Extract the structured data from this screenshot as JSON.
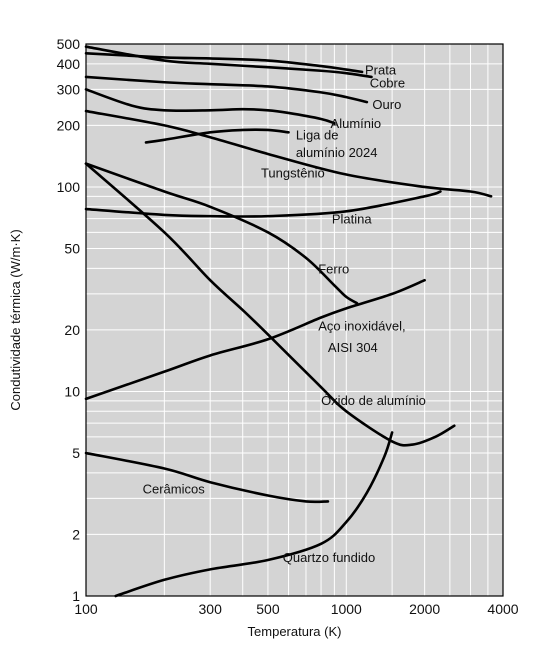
{
  "chart_data": {
    "type": "line",
    "xscale": "log",
    "yscale": "log",
    "xlim": [
      100,
      4000
    ],
    "ylim": [
      1,
      500
    ],
    "xlabel": "Temperatura (K)",
    "ylabel": "Condutividade térmica (W/m·K)",
    "grid": true,
    "xticks": [
      100,
      300,
      500,
      1000,
      2000,
      4000
    ],
    "xtick_labels": [
      "100",
      "300",
      "500",
      "1000",
      "2000",
      "4000"
    ],
    "yticks": [
      1,
      2,
      5,
      10,
      20,
      50,
      100,
      200,
      300,
      400,
      500
    ],
    "ytick_labels": [
      "1",
      "2",
      "5",
      "10",
      "20",
      "50",
      "100",
      "200",
      "300",
      "400",
      "500"
    ],
    "colors": {
      "background": "#d4d4d4",
      "grid": "#ffffff",
      "line": "#000000"
    },
    "series": [
      {
        "name": "Prata",
        "x": [
          100,
          200,
          300,
          500,
          800,
          1000,
          1150
        ],
        "y": [
          450,
          430,
          425,
          415,
          390,
          375,
          365
        ]
      },
      {
        "name": "Cobre",
        "x": [
          100,
          200,
          300,
          500,
          800,
          1000,
          1250
        ],
        "y": [
          485,
          415,
          400,
          385,
          370,
          360,
          345
        ]
      },
      {
        "name": "Ouro",
        "x": [
          100,
          200,
          300,
          500,
          800,
          1000,
          1200
        ],
        "y": [
          345,
          325,
          318,
          310,
          290,
          275,
          260
        ]
      },
      {
        "name": "Alumínio",
        "x": [
          100,
          150,
          200,
          300,
          400,
          500,
          600,
          800,
          900
        ],
        "y": [
          300,
          250,
          237,
          237,
          240,
          237,
          230,
          215,
          205
        ]
      },
      {
        "name": "Liga de alumínio 2024",
        "x": [
          170,
          200,
          300,
          400,
          500,
          600
        ],
        "y": [
          165,
          170,
          185,
          190,
          190,
          185
        ]
      },
      {
        "name": "Tungstênio",
        "x": [
          100,
          200,
          300,
          500,
          1000,
          2000,
          3000,
          3600
        ],
        "y": [
          235,
          200,
          175,
          145,
          115,
          100,
          95,
          90
        ]
      },
      {
        "name": "Platina",
        "x": [
          100,
          200,
          300,
          500,
          1000,
          2000,
          2300
        ],
        "y": [
          78,
          73,
          72,
          72,
          76,
          90,
          95
        ]
      },
      {
        "name": "Ferro",
        "x": [
          100,
          200,
          300,
          500,
          700,
          900,
          1000,
          1100
        ],
        "y": [
          130,
          95,
          80,
          60,
          45,
          33,
          29,
          27
        ]
      },
      {
        "name": "Aço inoxidável, AISI 304",
        "x": [
          100,
          200,
          300,
          500,
          800,
          1000,
          1500,
          2000
        ],
        "y": [
          9.2,
          12.5,
          15,
          18,
          23,
          25.5,
          30,
          35
        ]
      },
      {
        "name": "Óxido de alumínio",
        "x": [
          100,
          200,
          300,
          400,
          500,
          800,
          1000,
          1500,
          1800,
          2200,
          2600
        ],
        "y": [
          130,
          60,
          35,
          25,
          19,
          10.5,
          8,
          5.7,
          5.5,
          6,
          6.8
        ]
      },
      {
        "name": "Cerâmicos",
        "x": [
          100,
          200,
          300,
          500,
          700,
          850
        ],
        "y": [
          5,
          4.2,
          3.6,
          3.1,
          2.9,
          2.9
        ]
      },
      {
        "name": "Quartzo fundido",
        "x": [
          130,
          200,
          300,
          500,
          800,
          1000,
          1200,
          1400,
          1500
        ],
        "y": [
          1,
          1.2,
          1.35,
          1.5,
          1.8,
          2.3,
          3.2,
          4.8,
          6.3
        ]
      }
    ],
    "annotations": [
      {
        "text": "Prata",
        "x": 1180,
        "y": 375,
        "anchor": "start"
      },
      {
        "text": "Cobre",
        "x": 1230,
        "y": 325,
        "anchor": "start"
      },
      {
        "text": "Ouro",
        "x": 1260,
        "y": 255,
        "anchor": "start"
      },
      {
        "text": "Alumínio",
        "x": 870,
        "y": 205,
        "anchor": "start"
      },
      {
        "text": "Liga de",
        "x": 640,
        "y": 180,
        "anchor": "start"
      },
      {
        "text": "alumínio 2024",
        "x": 640,
        "y": 148,
        "anchor": "start"
      },
      {
        "text": "Tungstênio",
        "x": 470,
        "y": 118,
        "anchor": "start"
      },
      {
        "text": "Platina",
        "x": 880,
        "y": 70,
        "anchor": "start"
      },
      {
        "text": "Ferro",
        "x": 780,
        "y": 40,
        "anchor": "start"
      },
      {
        "text": "Aço inoxidável,",
        "x": 780,
        "y": 21,
        "anchor": "start"
      },
      {
        "text": "AISI 304",
        "x": 850,
        "y": 16.5,
        "anchor": "start"
      },
      {
        "text": "Óxido de alumínio",
        "x": 800,
        "y": 9.1,
        "anchor": "start"
      },
      {
        "text": "Cerâmicos",
        "x": 165,
        "y": 3.35,
        "anchor": "start"
      },
      {
        "text": "Quartzo fundido",
        "x": 570,
        "y": 1.55,
        "anchor": "start"
      }
    ]
  }
}
